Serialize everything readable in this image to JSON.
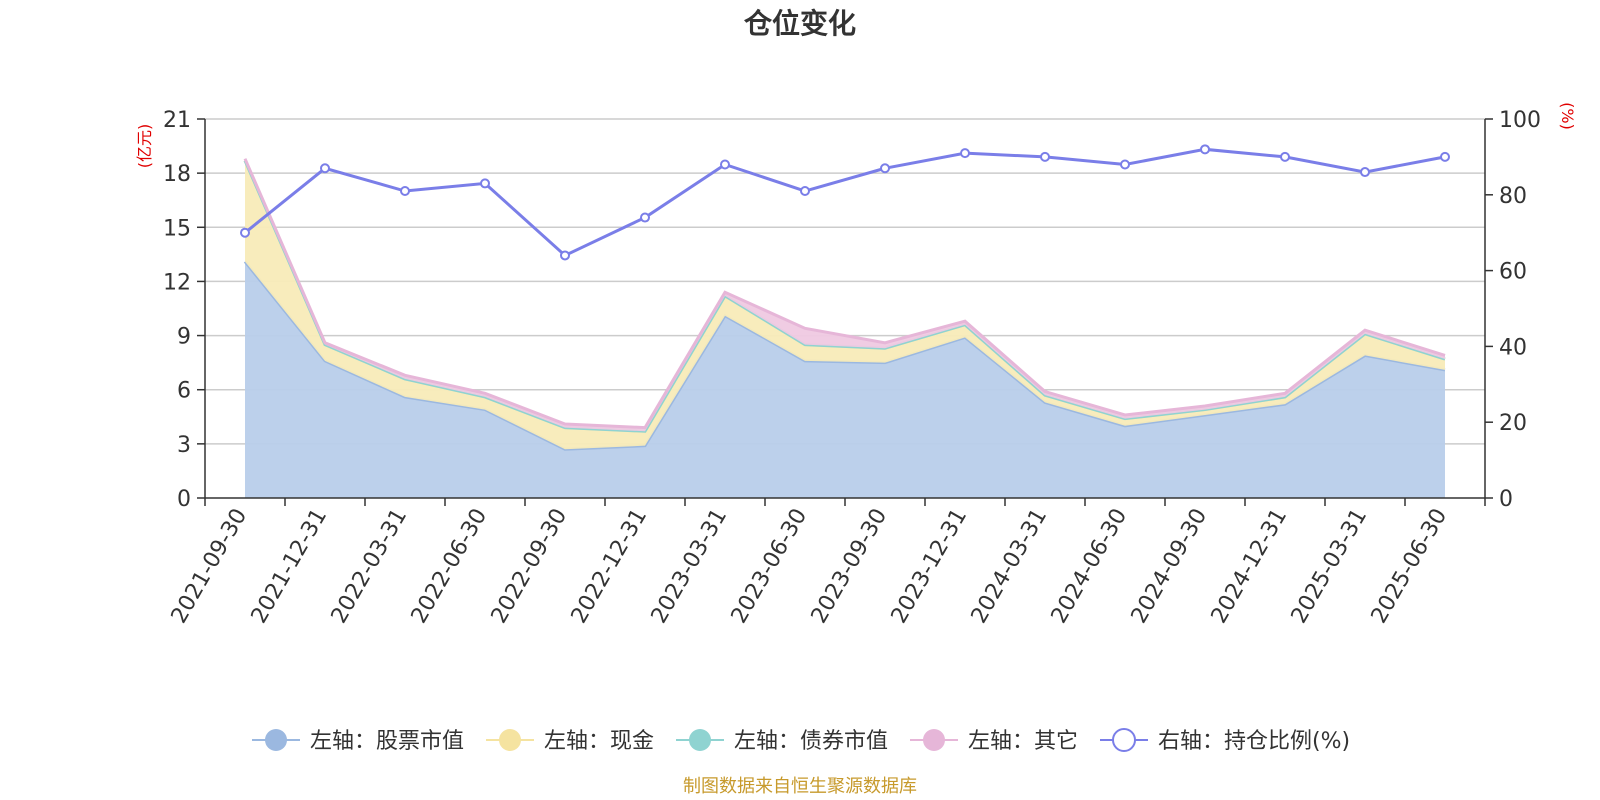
{
  "chart_data": {
    "type": "area",
    "title": "仓位变化",
    "left_unit": "(亿元)",
    "right_unit": "(%)",
    "categories": [
      "2021-09-30",
      "2021-12-31",
      "2022-03-31",
      "2022-06-30",
      "2022-09-30",
      "2022-12-31",
      "2023-03-31",
      "2023-06-30",
      "2023-09-30",
      "2023-12-31",
      "2024-03-31",
      "2024-06-30",
      "2024-09-30",
      "2024-12-31",
      "2025-03-31",
      "2025-06-30"
    ],
    "left_axis": {
      "min": 0,
      "max": 21,
      "ticks": [
        0,
        3,
        6,
        9,
        12,
        15,
        18,
        21
      ]
    },
    "right_axis": {
      "min": 0,
      "max": 100,
      "ticks": [
        0,
        20,
        40,
        60,
        80,
        100
      ]
    },
    "grid": true,
    "series": [
      {
        "name": "左轴：股票市值",
        "axis": "left",
        "kind": "area",
        "color": "#9bb8e0",
        "fill": "#b8cdea",
        "values": [
          13.1,
          7.6,
          5.6,
          4.9,
          2.7,
          2.9,
          10.1,
          7.6,
          7.5,
          8.9,
          5.3,
          4.0,
          4.6,
          5.2,
          7.9,
          7.1
        ]
      },
      {
        "name": "左轴：现金",
        "axis": "left",
        "kind": "area",
        "color": "#f5e3a0",
        "fill": "#f8ebb8",
        "values": [
          5.6,
          0.9,
          1.0,
          0.7,
          1.2,
          0.8,
          1.1,
          0.9,
          0.8,
          0.7,
          0.4,
          0.4,
          0.3,
          0.4,
          1.2,
          0.6
        ]
      },
      {
        "name": "左轴：债券市值",
        "axis": "left",
        "kind": "area",
        "color": "#8fd3d1",
        "fill": "#aee0df",
        "values": [
          0,
          0,
          0,
          0,
          0,
          0,
          0,
          0,
          0,
          0,
          0,
          0,
          0,
          0,
          0,
          0
        ]
      },
      {
        "name": "左轴：其它",
        "axis": "left",
        "kind": "area",
        "color": "#e6b6d8",
        "fill": "#efc9e2",
        "values": [
          0.1,
          0.1,
          0.2,
          0.2,
          0.2,
          0.2,
          0.2,
          0.9,
          0.3,
          0.2,
          0.2,
          0.2,
          0.2,
          0.2,
          0.2,
          0.2
        ]
      },
      {
        "name": "右轴：持仓比例(%)",
        "axis": "right",
        "kind": "line",
        "color": "#7a7ee8",
        "values": [
          70,
          87,
          81,
          83,
          64,
          74,
          88,
          81,
          87,
          91,
          90,
          88,
          92,
          90,
          86,
          90
        ]
      }
    ],
    "legend_position": "bottom",
    "source_text": "制图数据来自恒生聚源数据库"
  }
}
